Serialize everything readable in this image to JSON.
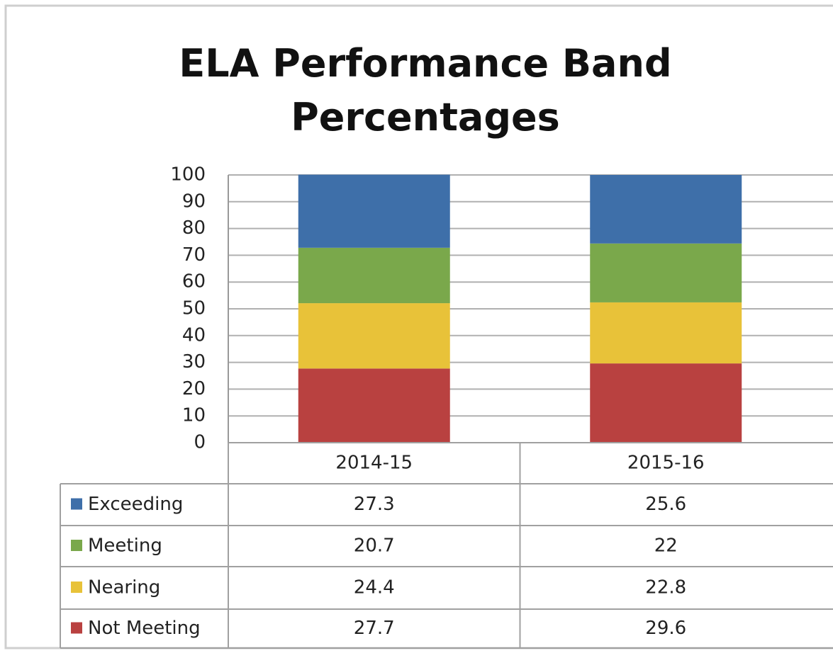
{
  "chart_data": {
    "type": "stacked_bar",
    "title": "ELA Performance Band Percentages",
    "categories": [
      "2014-15",
      "2015-16"
    ],
    "series": [
      {
        "name": "Exceeding",
        "color": "#3e6fa9",
        "values": [
          27.3,
          25.6
        ]
      },
      {
        "name": "Meeting",
        "color": "#7aa84b",
        "values": [
          20.7,
          22
        ]
      },
      {
        "name": "Nearing",
        "color": "#e8c239",
        "values": [
          24.4,
          22.8
        ]
      },
      {
        "name": "Not Meeting",
        "color": "#b94140",
        "values": [
          27.7,
          29.6
        ]
      }
    ],
    "ylim": [
      0,
      100
    ],
    "yticks": [
      0,
      10,
      20,
      30,
      40,
      50,
      60,
      70,
      80,
      90,
      100
    ],
    "grid": true
  }
}
